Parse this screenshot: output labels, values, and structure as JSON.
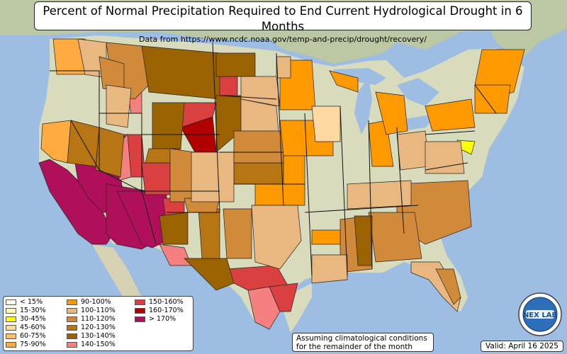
{
  "title": "Percent of Normal Precipitation Required to End Current Hydrological Drought in 6 Months",
  "subtitle": "Data from https://www.ncdc.noaa.gov/temp-and-precip/drought/recovery/",
  "legend": [
    {
      "label": "< 15%",
      "color": "#fffff0"
    },
    {
      "label": "15-30%",
      "color": "#ffffb0"
    },
    {
      "label": "30-45%",
      "color": "#ffff00"
    },
    {
      "label": "45-60%",
      "color": "#ffd9a0"
    },
    {
      "label": "60-75%",
      "color": "#ffc070"
    },
    {
      "label": "75-90%",
      "color": "#ffab40"
    },
    {
      "label": "90-100%",
      "color": "#ff9900"
    },
    {
      "label": "100-110%",
      "color": "#e8b880"
    },
    {
      "label": "110-120%",
      "color": "#d18a3a"
    },
    {
      "label": "120-130%",
      "color": "#b87514"
    },
    {
      "label": "130-140%",
      "color": "#9a6200"
    },
    {
      "label": "140-150%",
      "color": "#f58080"
    },
    {
      "label": "150-160%",
      "color": "#db4040"
    },
    {
      "label": "160-170%",
      "color": "#b00000"
    },
    {
      "label": "> 170%",
      "color": "#b0105a"
    }
  ],
  "note": "Assuming climatological conditions for the remainder of the month",
  "valid": "Valid: April 16 2025",
  "logo_text": "NEX LAB",
  "colors": {
    "water": "#9dbde2",
    "land": "#d8dcc0",
    "land_green": "#b8caa0",
    "land_dry": "#e4dcc4"
  }
}
